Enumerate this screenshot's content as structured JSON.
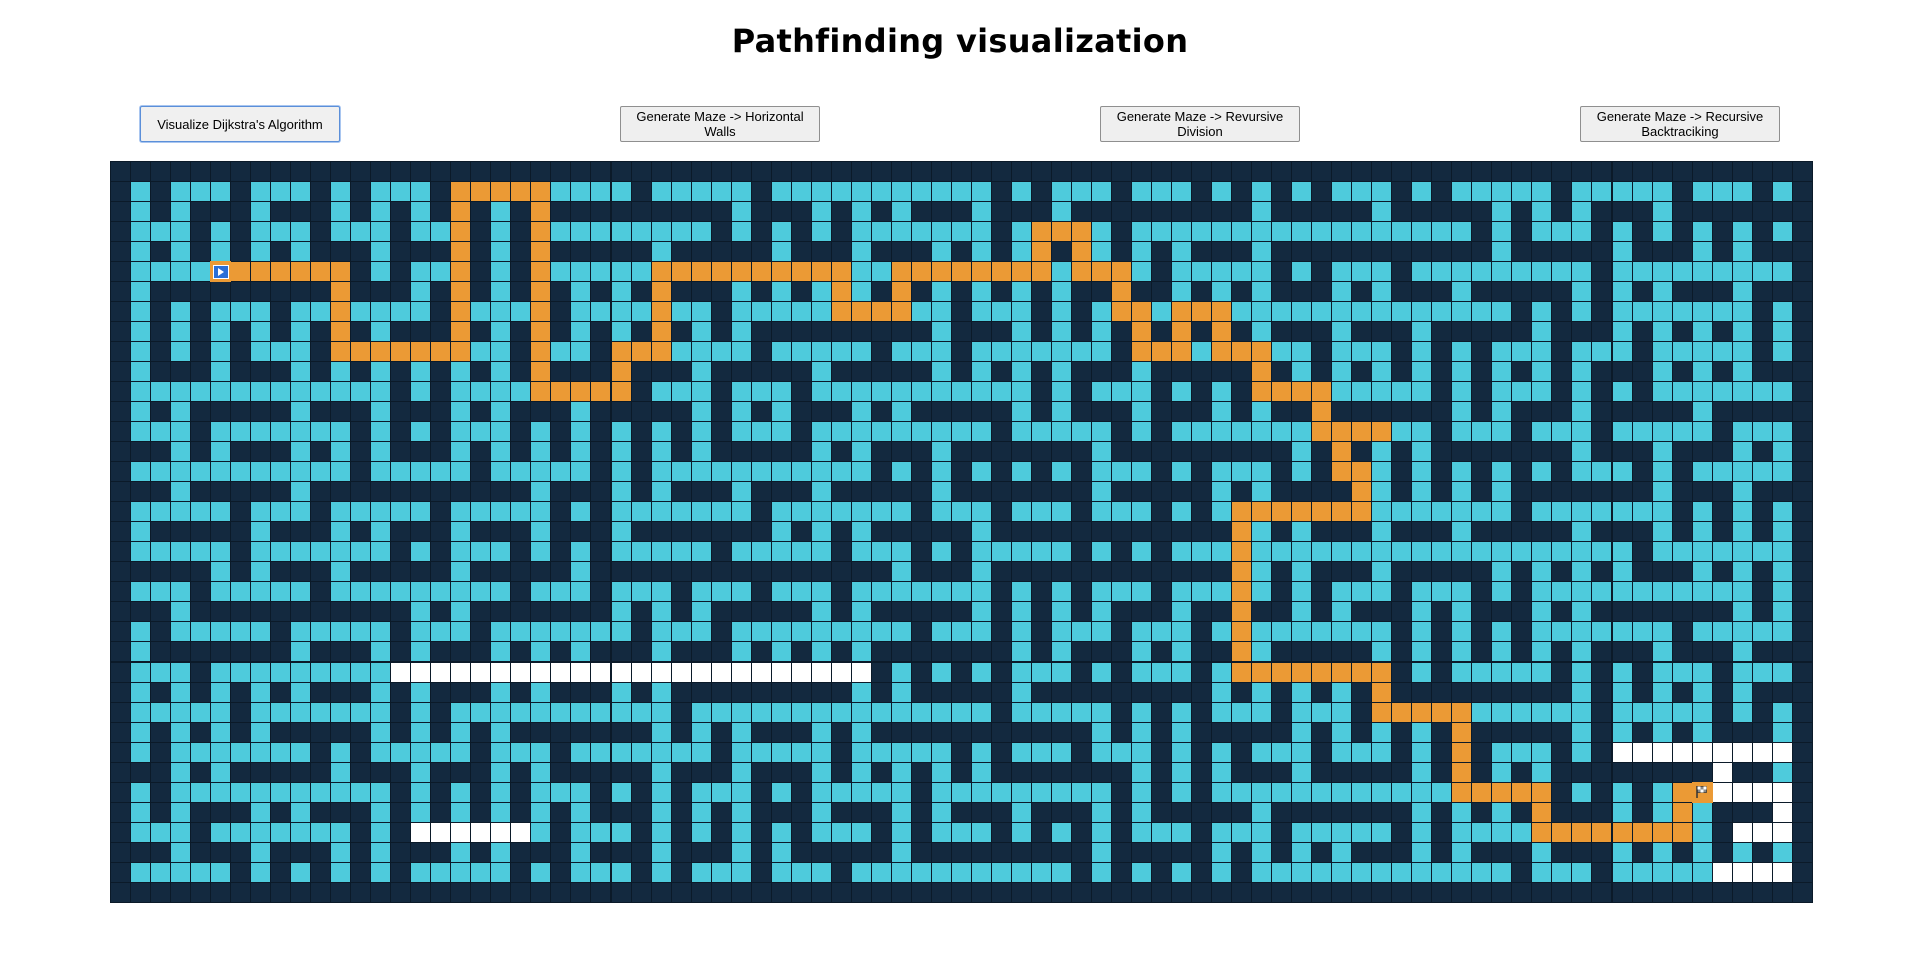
{
  "page": {
    "title": "Pathfinding visualization"
  },
  "toolbar": {
    "buttons": [
      {
        "id": "dijkstra",
        "label": "Visualize Dijkstra's Algorithm"
      },
      {
        "id": "horizontal",
        "label": "Generate Maze -> Horizontal Walls"
      },
      {
        "id": "division",
        "label": "Generate Maze -> Revursive Division"
      },
      {
        "id": "backtracking",
        "label": "Generate Maze -> Recursive Backtraciking"
      }
    ]
  },
  "grid": {
    "rows": 37,
    "cols": 85,
    "colors": {
      "wall": "#13293f",
      "open": "#4ecbdc",
      "path": "#eb9a35",
      "unvisited": "#ffffff",
      "border": "#0b1a29"
    },
    "start_node": {
      "row": 5,
      "col": 5,
      "icon": "play-arrow-icon"
    },
    "finish_node": {
      "row": 31,
      "col": 79,
      "icon": "flag-icon"
    },
    "path_cells": [
      [
        5,
        5
      ],
      [
        5,
        6
      ],
      [
        5,
        7
      ],
      [
        5,
        8
      ],
      [
        5,
        9
      ],
      [
        5,
        10
      ],
      [
        5,
        11
      ],
      [
        6,
        11
      ],
      [
        7,
        11
      ],
      [
        8,
        11
      ],
      [
        9,
        11
      ],
      [
        9,
        12
      ],
      [
        9,
        13
      ],
      [
        9,
        14
      ],
      [
        9,
        15
      ],
      [
        9,
        16
      ],
      [
        9,
        17
      ],
      [
        8,
        17
      ],
      [
        7,
        17
      ],
      [
        6,
        17
      ],
      [
        5,
        17
      ],
      [
        4,
        17
      ],
      [
        3,
        17
      ],
      [
        2,
        17
      ],
      [
        1,
        17
      ],
      [
        1,
        18
      ],
      [
        1,
        19
      ],
      [
        1,
        20
      ],
      [
        1,
        21
      ],
      [
        2,
        21
      ],
      [
        3,
        21
      ],
      [
        4,
        21
      ],
      [
        5,
        21
      ],
      [
        6,
        21
      ],
      [
        7,
        21
      ],
      [
        8,
        21
      ],
      [
        9,
        21
      ],
      [
        10,
        21
      ],
      [
        11,
        21
      ],
      [
        11,
        22
      ],
      [
        11,
        23
      ],
      [
        11,
        24
      ],
      [
        11,
        25
      ],
      [
        10,
        25
      ],
      [
        9,
        25
      ],
      [
        9,
        26
      ],
      [
        9,
        27
      ],
      [
        8,
        27
      ],
      [
        7,
        27
      ],
      [
        6,
        27
      ],
      [
        5,
        27
      ],
      [
        5,
        28
      ],
      [
        5,
        29
      ],
      [
        5,
        30
      ],
      [
        5,
        31
      ],
      [
        5,
        32
      ],
      [
        5,
        33
      ],
      [
        5,
        34
      ],
      [
        5,
        35
      ],
      [
        5,
        36
      ],
      [
        6,
        36
      ],
      [
        7,
        36
      ],
      [
        7,
        37
      ],
      [
        7,
        38
      ],
      [
        7,
        39
      ],
      [
        6,
        39
      ],
      [
        5,
        39
      ],
      [
        5,
        40
      ],
      [
        5,
        41
      ],
      [
        5,
        42
      ],
      [
        5,
        43
      ],
      [
        5,
        44
      ],
      [
        5,
        45
      ],
      [
        5,
        46
      ],
      [
        4,
        46
      ],
      [
        3,
        46
      ],
      [
        3,
        47
      ],
      [
        3,
        48
      ],
      [
        4,
        48
      ],
      [
        5,
        48
      ],
      [
        5,
        49
      ],
      [
        5,
        50
      ],
      [
        6,
        50
      ],
      [
        7,
        50
      ],
      [
        7,
        51
      ],
      [
        8,
        51
      ],
      [
        9,
        51
      ],
      [
        9,
        52
      ],
      [
        9,
        53
      ],
      [
        8,
        53
      ],
      [
        7,
        53
      ],
      [
        7,
        54
      ],
      [
        7,
        55
      ],
      [
        8,
        55
      ],
      [
        9,
        55
      ],
      [
        9,
        56
      ],
      [
        9,
        57
      ],
      [
        10,
        57
      ],
      [
        11,
        57
      ],
      [
        11,
        58
      ],
      [
        11,
        59
      ],
      [
        11,
        60
      ],
      [
        12,
        60
      ],
      [
        13,
        60
      ],
      [
        13,
        61
      ],
      [
        13,
        62
      ],
      [
        13,
        63
      ],
      [
        14,
        61
      ],
      [
        15,
        61
      ],
      [
        15,
        62
      ],
      [
        16,
        62
      ],
      [
        17,
        62
      ],
      [
        17,
        61
      ],
      [
        17,
        60
      ],
      [
        17,
        59
      ],
      [
        17,
        58
      ],
      [
        17,
        57
      ],
      [
        17,
        56
      ],
      [
        18,
        56
      ],
      [
        19,
        56
      ],
      [
        20,
        56
      ],
      [
        21,
        56
      ],
      [
        22,
        56
      ],
      [
        23,
        56
      ],
      [
        24,
        56
      ],
      [
        25,
        56
      ],
      [
        25,
        57
      ],
      [
        25,
        58
      ],
      [
        25,
        59
      ],
      [
        25,
        60
      ],
      [
        25,
        61
      ],
      [
        25,
        62
      ],
      [
        25,
        63
      ],
      [
        26,
        63
      ],
      [
        27,
        63
      ],
      [
        27,
        64
      ],
      [
        27,
        65
      ],
      [
        27,
        66
      ],
      [
        27,
        67
      ],
      [
        28,
        67
      ],
      [
        29,
        67
      ],
      [
        30,
        67
      ],
      [
        31,
        67
      ],
      [
        31,
        68
      ],
      [
        31,
        69
      ],
      [
        31,
        70
      ],
      [
        31,
        71
      ],
      [
        32,
        71
      ],
      [
        33,
        71
      ],
      [
        33,
        72
      ],
      [
        33,
        73
      ],
      [
        33,
        74
      ],
      [
        33,
        75
      ],
      [
        33,
        76
      ],
      [
        33,
        77
      ],
      [
        33,
        78
      ],
      [
        32,
        78
      ],
      [
        31,
        78
      ],
      [
        31,
        79
      ]
    ],
    "unvisited_segments": [
      {
        "row": 25,
        "from": 14,
        "to": 37
      },
      {
        "row": 33,
        "from": 15,
        "to": 20
      },
      {
        "row": 29,
        "from": 75,
        "to": 83
      },
      {
        "row": 30,
        "from": 80,
        "to": 80
      },
      {
        "row": 31,
        "from": 80,
        "to": 83
      },
      {
        "row": 32,
        "from": 83,
        "to": 83
      },
      {
        "row": 33,
        "from": 81,
        "to": 83
      },
      {
        "row": 35,
        "from": 80,
        "to": 83
      }
    ]
  }
}
